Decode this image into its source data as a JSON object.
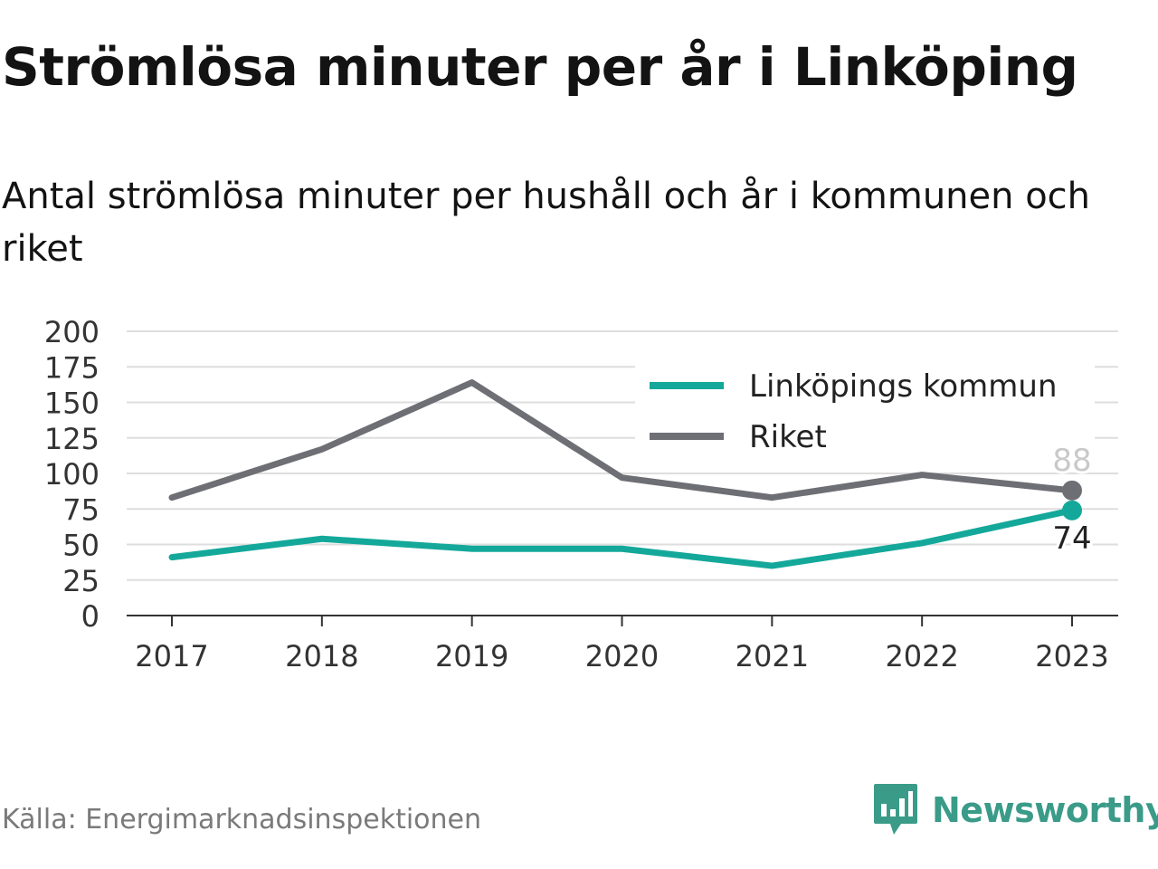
{
  "title": "Strömlösa minuter per år i Linköping",
  "subtitle": "Antal strömlösa minuter per hushåll och år i kommunen och riket",
  "source": "Källa: Energimarknadsinspektionen",
  "brand": {
    "name": "Newsworthy",
    "icon": "newsworthy-logo-icon",
    "color": "#3a9b88"
  },
  "chart_data": {
    "type": "line",
    "x": [
      "2017",
      "2018",
      "2019",
      "2020",
      "2021",
      "2022",
      "2023"
    ],
    "series": [
      {
        "name": "Linköpings kommun",
        "color": "#14a89a",
        "values": [
          41,
          54,
          47,
          47,
          35,
          51,
          74
        ],
        "end_label": "74"
      },
      {
        "name": "Riket",
        "color": "#6e6e75",
        "values": [
          83,
          117,
          164,
          97,
          83,
          99,
          88
        ],
        "end_label": "88"
      }
    ],
    "ylim": [
      0,
      200
    ],
    "yticks": [
      0,
      25,
      50,
      75,
      100,
      125,
      150,
      175,
      200
    ],
    "grid": true,
    "legend": "top-right",
    "xlabel": "",
    "ylabel": ""
  }
}
